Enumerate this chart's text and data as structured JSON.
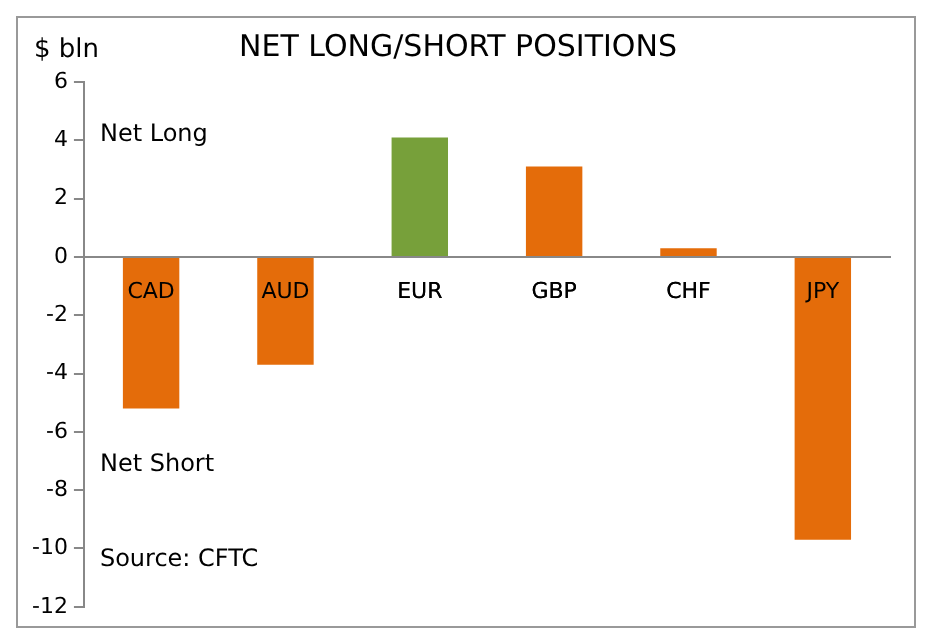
{
  "chart_data": {
    "type": "bar",
    "title": "NET LONG/SHORT POSITIONS",
    "ylabel": "$ bln",
    "categories": [
      "CAD",
      "AUD",
      "EUR",
      "GBP",
      "CHF",
      "JPY"
    ],
    "values": [
      -5.2,
      -3.7,
      4.1,
      3.1,
      0.3,
      -9.7
    ],
    "colors": [
      "#e46c0a",
      "#e46c0a",
      "#77a03a",
      "#e46c0a",
      "#e46c0a",
      "#e46c0a"
    ],
    "ylim": [
      -12,
      6
    ],
    "yticks": [
      -12,
      -10,
      -8,
      -6,
      -4,
      -2,
      0,
      2,
      4,
      6
    ],
    "grid": false,
    "legend": false,
    "annotations": [
      "Net Long",
      "Net Short",
      "Source: CFTC"
    ]
  }
}
